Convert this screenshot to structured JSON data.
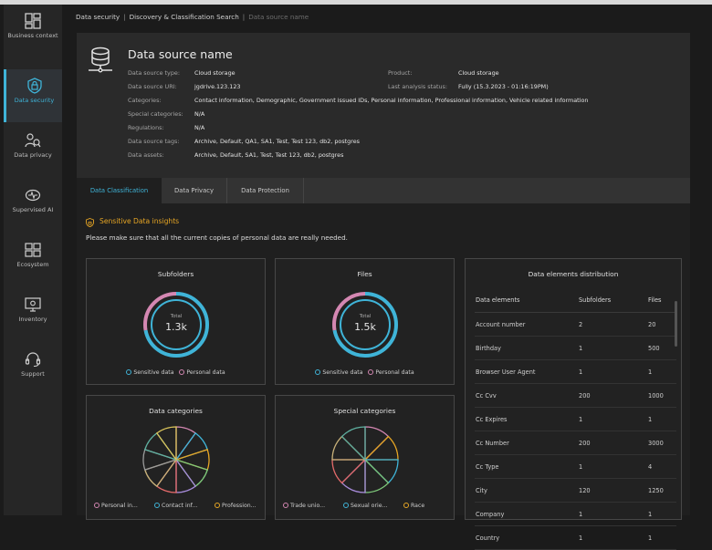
{
  "sidebar": {
    "items": [
      {
        "label": "Business context",
        "icon": "business-context-icon"
      },
      {
        "label": "Data security",
        "icon": "shield-lock-icon"
      },
      {
        "label": "Data privacy",
        "icon": "data-privacy-icon"
      },
      {
        "label": "Supervised AI",
        "icon": "brain-icon"
      },
      {
        "label": "Ecosystem",
        "icon": "ecosystem-icon"
      },
      {
        "label": "Inventory",
        "icon": "inventory-icon"
      },
      {
        "label": "Support",
        "icon": "headset-icon"
      }
    ],
    "active_index": 1
  },
  "breadcrumb": {
    "items": [
      "Data security",
      "Discovery & Classification Search"
    ],
    "current": "Data source name",
    "separator": "|"
  },
  "datasource": {
    "title": "Data source name",
    "left": [
      {
        "key": "Data source type:",
        "value": "Cloud storage"
      },
      {
        "key": "Data source URI:",
        "value": "jgdrive.123.123"
      },
      {
        "key": "Categories:",
        "value": "Contact information, Demographic, Government issued IDs, Personal information, Professional information, Vehicle related information"
      },
      {
        "key": "Special categories:",
        "value": "N/A"
      },
      {
        "key": "Regulations:",
        "value": "N/A"
      },
      {
        "key": "Data source tags:",
        "value": "Archive, Default, QA1, SA1, Test, Test 123, db2, postgres"
      },
      {
        "key": "Data assets:",
        "value": "Archive, Default, SA1, Test, Test 123, db2, postgres"
      }
    ],
    "right": [
      {
        "key": "Product:",
        "value": "Cloud storage"
      },
      {
        "key": "Last analysis status:",
        "value": "Fully (15.3.2023 - 01:16:19PM)"
      }
    ]
  },
  "tabs": [
    "Data Classification",
    "Data Privacy",
    "Data Protection"
  ],
  "active_tab": 0,
  "insights": {
    "title": "Sensitive Data insights",
    "notice": "Please make sure that all the current copies of personal data are really needed."
  },
  "colors": {
    "accent": "#3fb4d8",
    "warning": "#e7a624",
    "sensitive": "#3fb4d8",
    "personal": "#d487b2"
  },
  "subfolders": {
    "title": "Subfolders",
    "total_label": "Total",
    "total": "1.3k",
    "sensitive_share": 0.72
  },
  "files": {
    "title": "Files",
    "total_label": "Total",
    "total": "1.5k",
    "sensitive_share": 0.72
  },
  "donut_legend": {
    "sensitive": "Sensitive data",
    "personal": "Personal data"
  },
  "data_categories": {
    "title": "Data categories",
    "slice_colors": [
      "#d487b2",
      "#3fb4d8",
      "#e7a624",
      "#7ec87a",
      "#a78bda",
      "#e46a6a",
      "#c9b27a",
      "#9a9a9a",
      "#5fb0a0",
      "#d9c35a"
    ],
    "legend": [
      "Personal in...",
      "Contact inf...",
      "Profession..."
    ]
  },
  "special_categories": {
    "title": "Special categories",
    "slice_colors": [
      "#d487b2",
      "#e7a624",
      "#3fb4d8",
      "#7ec87a",
      "#a78bda",
      "#e46a6a",
      "#c9b27a",
      "#5fb0a0"
    ],
    "legend": [
      "Trade unio...",
      "Sexual orie...",
      "Race"
    ]
  },
  "distribution": {
    "title": "Data elements distribution",
    "columns": [
      "Data elements",
      "Subfolders",
      "Files"
    ],
    "rows": [
      [
        "Account number",
        "2",
        "20"
      ],
      [
        "Birthday",
        "1",
        "500"
      ],
      [
        "Browser User Agent",
        "1",
        "1"
      ],
      [
        "Cc Cvv",
        "200",
        "1000"
      ],
      [
        "Cc Expires",
        "1",
        "1"
      ],
      [
        "Cc Number",
        "200",
        "3000"
      ],
      [
        "Cc Type",
        "1",
        "4"
      ],
      [
        "City",
        "120",
        "1250"
      ],
      [
        "Company",
        "1",
        "1"
      ],
      [
        "Country",
        "1",
        "1"
      ]
    ]
  }
}
